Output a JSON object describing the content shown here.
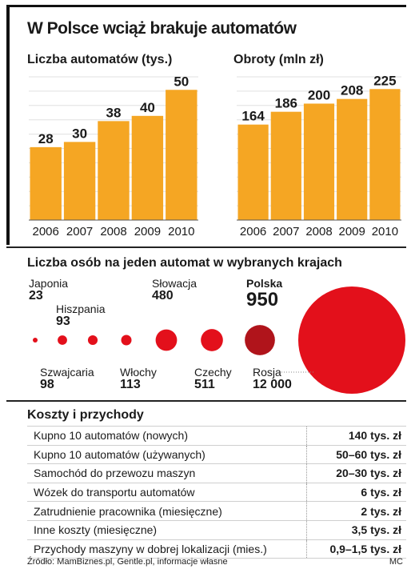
{
  "title": "W Polsce wciąż brakuje automatów",
  "chart_data": [
    {
      "type": "bar",
      "title": "Liczba automatów (tys.)",
      "categories": [
        "2006",
        "2007",
        "2008",
        "2009",
        "2010"
      ],
      "values": [
        28,
        30,
        38,
        40,
        50
      ],
      "ylim": [
        0,
        55
      ],
      "grid": true,
      "color": "#f5a623"
    },
    {
      "type": "bar",
      "title": "Obroty (mln zł)",
      "categories": [
        "2006",
        "2007",
        "2008",
        "2009",
        "2010"
      ],
      "values": [
        164,
        186,
        200,
        208,
        225
      ],
      "ylim": [
        0,
        246
      ],
      "grid": true,
      "color": "#f5a623"
    },
    {
      "type": "scatter",
      "subtype": "bubble",
      "title": "Liczba osób na jeden automat w wybranych krajach",
      "points": [
        {
          "name": "Japonia",
          "value": "23",
          "n": 23
        },
        {
          "name": "Hiszpania",
          "value": "93",
          "n": 93
        },
        {
          "name": "Szwajcaria",
          "value": "98",
          "n": 98
        },
        {
          "name": "Włochy",
          "value": "113",
          "n": 113
        },
        {
          "name": "Słowacja",
          "value": "480",
          "n": 480
        },
        {
          "name": "Czechy",
          "value": "511",
          "n": 511
        },
        {
          "name": "Polska",
          "value": "950",
          "n": 950,
          "highlight": true
        },
        {
          "name": "Rosja",
          "value": "12 000",
          "n": 12000
        }
      ],
      "colors": {
        "default": "#e3101b",
        "highlight": "#b0141b"
      }
    }
  ],
  "costs": {
    "title": "Koszty i przychody",
    "rows": [
      {
        "label": "Kupno 10 automatów (nowych)",
        "value": "140 tys. zł"
      },
      {
        "label": "Kupno 10 automatów (używanych)",
        "value": "50–60 tys. zł"
      },
      {
        "label": "Samochód do przewozu maszyn",
        "value": "20–30 tys. zł"
      },
      {
        "label": "Wózek do transportu automatów",
        "value": "6 tys. zł"
      },
      {
        "label": "Zatrudnienie pracownika (miesięczne)",
        "value": "2 tys. zł"
      },
      {
        "label": "Inne koszty (miesięczne)",
        "value": "3,5 tys. zł"
      },
      {
        "label": "Przychody maszyny w dobrej lokalizacji (mies.)",
        "value": "0,9–1,5 tys. zł"
      }
    ]
  },
  "footer": {
    "source": "Źródło: MamBiznes.pl, Gentle.pl, informacje własne",
    "author": "MC"
  }
}
